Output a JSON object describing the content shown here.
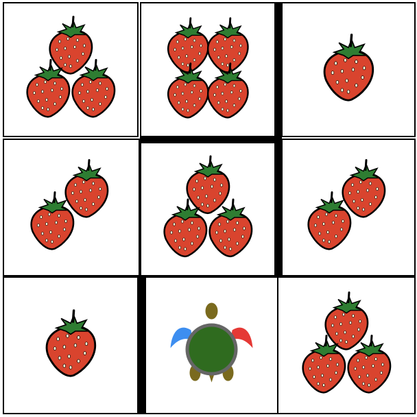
{
  "game": {
    "grid": {
      "rows": 3,
      "cols": 3
    },
    "cells": [
      {
        "row": 0,
        "col": 0,
        "strawberries": 3
      },
      {
        "row": 0,
        "col": 1,
        "strawberries": 4
      },
      {
        "row": 0,
        "col": 2,
        "strawberries": 1
      },
      {
        "row": 1,
        "col": 0,
        "strawberries": 2
      },
      {
        "row": 1,
        "col": 1,
        "strawberries": 3
      },
      {
        "row": 1,
        "col": 2,
        "strawberries": 2
      },
      {
        "row": 2,
        "col": 0,
        "strawberries": 1
      },
      {
        "row": 2,
        "col": 1,
        "strawberries": 0,
        "turtle": true
      },
      {
        "row": 2,
        "col": 2,
        "strawberries": 3
      }
    ],
    "walls": [
      {
        "between": "r0c1-r0c2",
        "side": "vertical"
      },
      {
        "between": "r0c1-r1c1",
        "side": "horizontal"
      },
      {
        "between": "r1c1-r1c2",
        "side": "vertical"
      },
      {
        "between": "r2c0-r2c1",
        "side": "vertical"
      }
    ],
    "turtle": {
      "row": 2,
      "col": 1,
      "facing": "up"
    },
    "icons": {
      "strawberry": "strawberry-icon",
      "turtle": "turtle-icon"
    },
    "colors": {
      "strawberry_red": "#d9442e",
      "strawberry_leaf": "#2e7d32",
      "turtle_shell": "#2f6b1f",
      "turtle_rim": "#666666",
      "turtle_skin": "#7a6a1e",
      "turtle_left_fin": "#3d8ef0",
      "turtle_right_fin": "#e53935",
      "wall": "#000000"
    }
  }
}
